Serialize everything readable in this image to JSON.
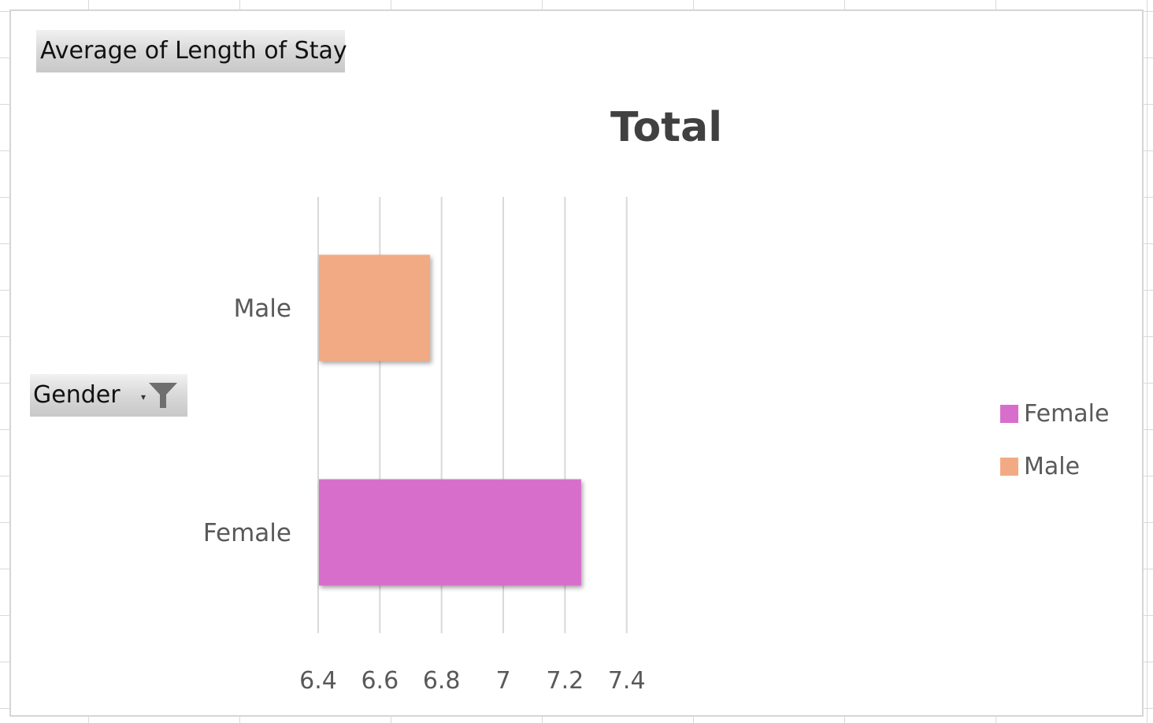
{
  "pivot_field_buttons": {
    "value_field": "Average of Length of Stay",
    "axis_field": "Gender"
  },
  "icons": {
    "axis_field_filter": "filter-icon"
  },
  "chart_data": {
    "type": "bar",
    "orientation": "horizontal",
    "title": "Total",
    "categories": [
      "Male",
      "Female"
    ],
    "values": [
      6.76,
      7.25
    ],
    "colors": [
      "#f2aa84",
      "#d86ecc"
    ],
    "xlim": [
      6.4,
      7.5
    ],
    "xticks": [
      6.4,
      6.6,
      6.8,
      7,
      7.2,
      7.4
    ],
    "tick_labels": [
      "6.4",
      "6.6",
      "6.8",
      "7",
      "7.2",
      "7.4"
    ],
    "grid": "vertical",
    "legend": {
      "position": "right",
      "entries": [
        {
          "label": "Female",
          "color": "#d86ecc"
        },
        {
          "label": "Male",
          "color": "#f2aa84"
        }
      ]
    }
  }
}
